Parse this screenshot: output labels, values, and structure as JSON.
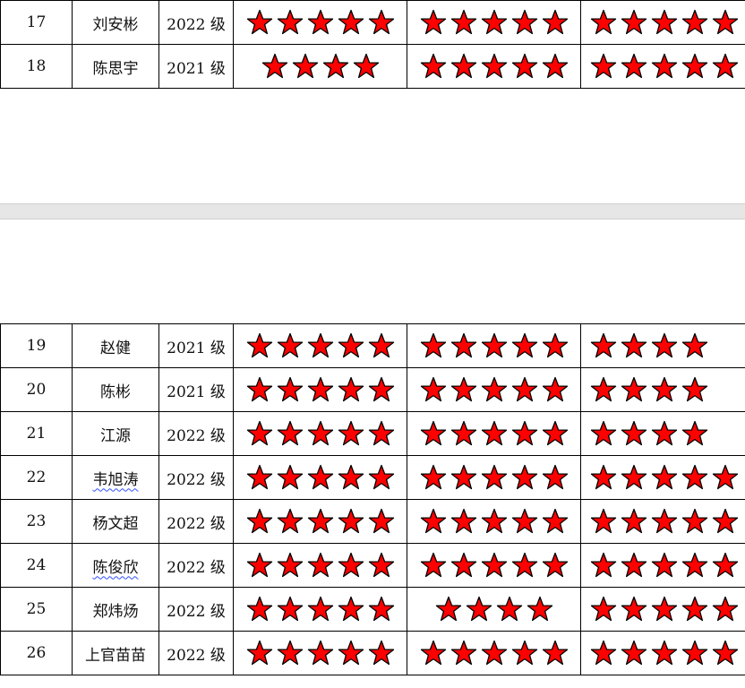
{
  "page1_rows": [
    {
      "no": "17",
      "name": "刘安彬",
      "grade": "2022 级",
      "ratings": [
        5,
        5,
        5
      ],
      "spell": false
    },
    {
      "no": "18",
      "name": "陈思宇",
      "grade": "2021 级",
      "ratings": [
        4,
        5,
        5
      ],
      "spell": false
    }
  ],
  "page2_rows": [
    {
      "no": "19",
      "name": "赵健",
      "grade": "2021 级",
      "ratings": [
        5,
        5,
        4
      ],
      "spell": false
    },
    {
      "no": "20",
      "name": "陈彬",
      "grade": "2021 级",
      "ratings": [
        5,
        5,
        4
      ],
      "spell": false
    },
    {
      "no": "21",
      "name": "江源",
      "grade": "2022 级",
      "ratings": [
        5,
        5,
        4
      ],
      "spell": false
    },
    {
      "no": "22",
      "name": "韦旭涛",
      "grade": "2022 级",
      "ratings": [
        5,
        5,
        5
      ],
      "spell": true
    },
    {
      "no": "23",
      "name": "杨文超",
      "grade": "2022 级",
      "ratings": [
        5,
        5,
        5
      ],
      "spell": false
    },
    {
      "no": "24",
      "name": "陈俊欣",
      "grade": "2022 级",
      "ratings": [
        5,
        5,
        5
      ],
      "spell": true
    },
    {
      "no": "25",
      "name": "郑炜炀",
      "grade": "2022 级",
      "ratings": [
        5,
        4,
        5
      ],
      "spell": false
    },
    {
      "no": "26",
      "name": "上官苗苗",
      "grade": "2022 级",
      "ratings": [
        5,
        5,
        5
      ],
      "spell": false
    }
  ],
  "colors": {
    "star_fill": "#ff0000",
    "star_stroke": "#000000",
    "page_gap": "#e6e6e6"
  },
  "icons": {
    "rating": "star-icon"
  }
}
